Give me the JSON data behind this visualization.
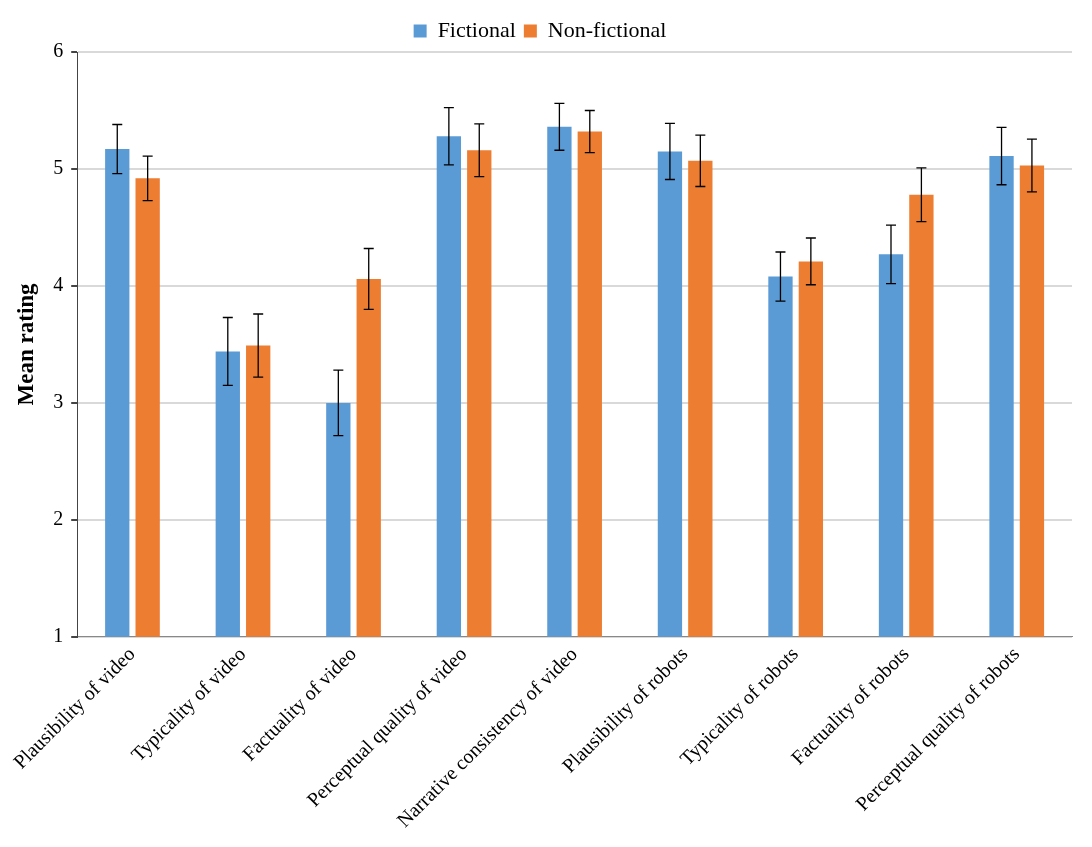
{
  "chart_data": {
    "type": "bar",
    "ylabel": "Mean rating",
    "categories": [
      "Plausibility of video",
      "Typicality of video",
      "Factuality of video",
      "Perceptual quality of video",
      "Narrative consistency of video",
      "Plausibility of robots",
      "Typicality of robots",
      "Factuality of robots",
      "Perceptual quality of robots"
    ],
    "series": [
      {
        "name": "Fictional",
        "color": "#5b9bd5",
        "values": [
          5.17,
          3.44,
          3.0,
          5.28,
          5.36,
          5.15,
          4.08,
          4.27,
          5.11
        ],
        "errors": [
          0.21,
          0.29,
          0.28,
          0.245,
          0.2,
          0.24,
          0.21,
          0.25,
          0.245
        ]
      },
      {
        "name": "Non-fictional",
        "color": "#ed7d31",
        "values": [
          4.92,
          3.49,
          4.06,
          5.16,
          5.32,
          5.07,
          4.21,
          4.78,
          5.03
        ],
        "errors": [
          0.19,
          0.27,
          0.26,
          0.225,
          0.18,
          0.22,
          0.2,
          0.23,
          0.225
        ]
      }
    ],
    "ylim": [
      1,
      6
    ],
    "yticks": [
      1,
      2,
      3,
      4,
      5,
      6
    ],
    "grid": "y",
    "legend": "top"
  }
}
